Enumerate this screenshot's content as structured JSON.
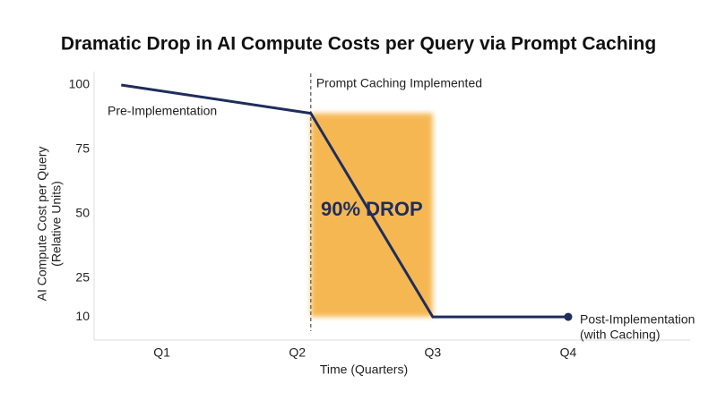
{
  "chart_data": {
    "type": "line",
    "title": "Dramatic Drop in AI Compute Costs per Query via Prompt Caching",
    "x_label": "Time (Quarters)",
    "y_label": [
      "AI Compute Cost per Query",
      "(Relative Units)"
    ],
    "x": [
      0.7,
      2.1,
      3,
      4
    ],
    "values": [
      100,
      89,
      10,
      10
    ],
    "color": "#1f2d5c",
    "xlim": [
      0.5,
      4.9
    ],
    "xticks": [
      {
        "value": 1,
        "label": "Q1"
      },
      {
        "value": 2,
        "label": "Q2"
      },
      {
        "value": 3,
        "label": "Q3"
      },
      {
        "value": 4,
        "label": "Q4"
      }
    ],
    "ylim": [
      1,
      105
    ],
    "yticks": [
      10,
      25,
      50,
      75,
      100
    ],
    "grid": false,
    "marker_last": true,
    "vline": {
      "x": 2.1,
      "label": "Prompt Caching Implemented"
    },
    "highlight": {
      "xlim": [
        2.1,
        3
      ],
      "ylim": [
        10,
        89
      ],
      "label": "90% DROP",
      "color": "#f5b041"
    },
    "start_label": "Pre-Implementation",
    "end_label": [
      "Post-Implementation",
      "(with Caching)"
    ]
  }
}
